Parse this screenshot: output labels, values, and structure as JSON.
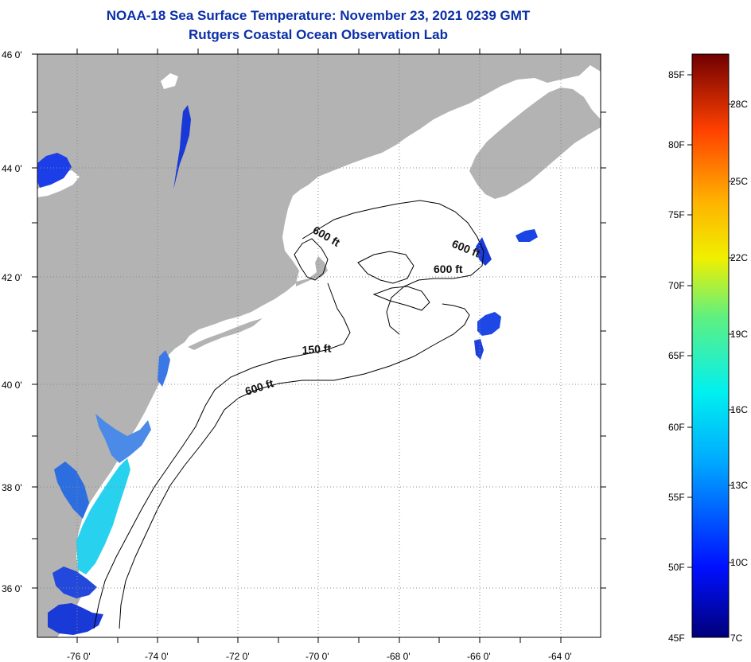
{
  "title": {
    "line1": "NOAA-18 Sea Surface Temperature:  November 23, 2021 0239 GMT",
    "line2": "Rutgers Coastal Ocean Observation Lab"
  },
  "lat_labels": [
    "46 0'",
    "44 0'",
    "42 0'",
    "40 0'",
    "38 0'",
    "36 0'"
  ],
  "lon_labels": [
    "-76 0'",
    "-74 0'",
    "-72 0'",
    "-70 0'",
    "-68 0'",
    "-66 0'",
    "-64 0'"
  ],
  "isobaths": {
    "a": "600 ft",
    "b": "600 ft",
    "c": "600 ft",
    "d": "150 ft",
    "e": "600 ft"
  },
  "colorbar": {
    "fahrenheit": [
      "85F",
      "80F",
      "75F",
      "70F",
      "65F",
      "60F",
      "55F",
      "50F",
      "45F"
    ],
    "celsius": [
      "28C",
      "25C",
      "22C",
      "19C",
      "16C",
      "13C",
      "10C",
      "7C"
    ]
  },
  "colors": {
    "land": "#b3b3b3",
    "ocean": "#ffffff",
    "title": "#0b2fa8",
    "cold": "#1030e0",
    "mid": "#2ad8f0"
  }
}
